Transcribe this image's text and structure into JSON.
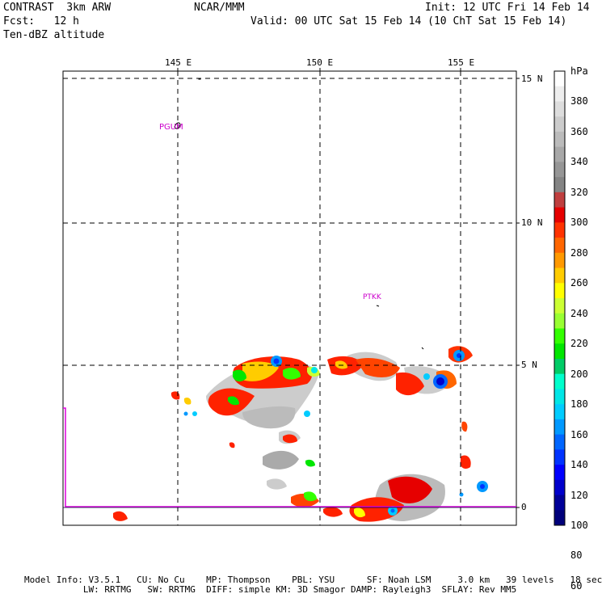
{
  "header": {
    "model_name": "CONTRAST  3km ARW",
    "center": "NCAR/MMM",
    "init": "Init: 12 UTC Fri 14 Feb 14",
    "forecast": "Fcst:   12 h",
    "valid": "Valid: 00 UTC Sat 15 Feb 14 (10 ChT Sat 15 Feb 14)",
    "field": "Ten-dBZ altitude"
  },
  "map": {
    "lon_labels": [
      "145 E",
      "150 E",
      "155 E"
    ],
    "lat_labels": [
      "15 N",
      "10 N",
      "5 N",
      "0"
    ],
    "stations": [
      {
        "id": "PGUM",
        "color": "#cc00cc"
      },
      {
        "id": "PTKK",
        "color": "#cc00cc"
      }
    ]
  },
  "colorbar": {
    "unit": "hPa",
    "levels": [
      "380",
      "360",
      "340",
      "320",
      "300",
      "280",
      "260",
      "240",
      "220",
      "200",
      "180",
      "160",
      "140",
      "120",
      "100",
      "80",
      "60"
    ],
    "colors": [
      "#ffffff",
      "#eeeeee",
      "#dddddd",
      "#cccccc",
      "#bbbbbb",
      "#a8a8a8",
      "#969696",
      "#848484",
      "#bf3f3f",
      "#e60000",
      "#ff3300",
      "#ff6600",
      "#ff9900",
      "#ffcc00",
      "#ffff00",
      "#ccff33",
      "#99ff33",
      "#33ff00",
      "#00e600",
      "#00cc66",
      "#00ffcc",
      "#00e6e6",
      "#00ccff",
      "#0099ff",
      "#0066ff",
      "#0033ff",
      "#0000ff",
      "#0000cc",
      "#000099",
      "#00007a"
    ]
  },
  "footer": {
    "line1": "Model Info: V3.5.1   CU: No Cu    MP: Thompson    PBL: YSU      SF: Noah LSM     3.0 km   39 levels   18 sec",
    "line2": "           LW: RRTMG   SW: RRTMG  DIFF: simple KM: 3D Smagor DAMP: Rayleigh3  SFLAY: Rev MM5"
  }
}
